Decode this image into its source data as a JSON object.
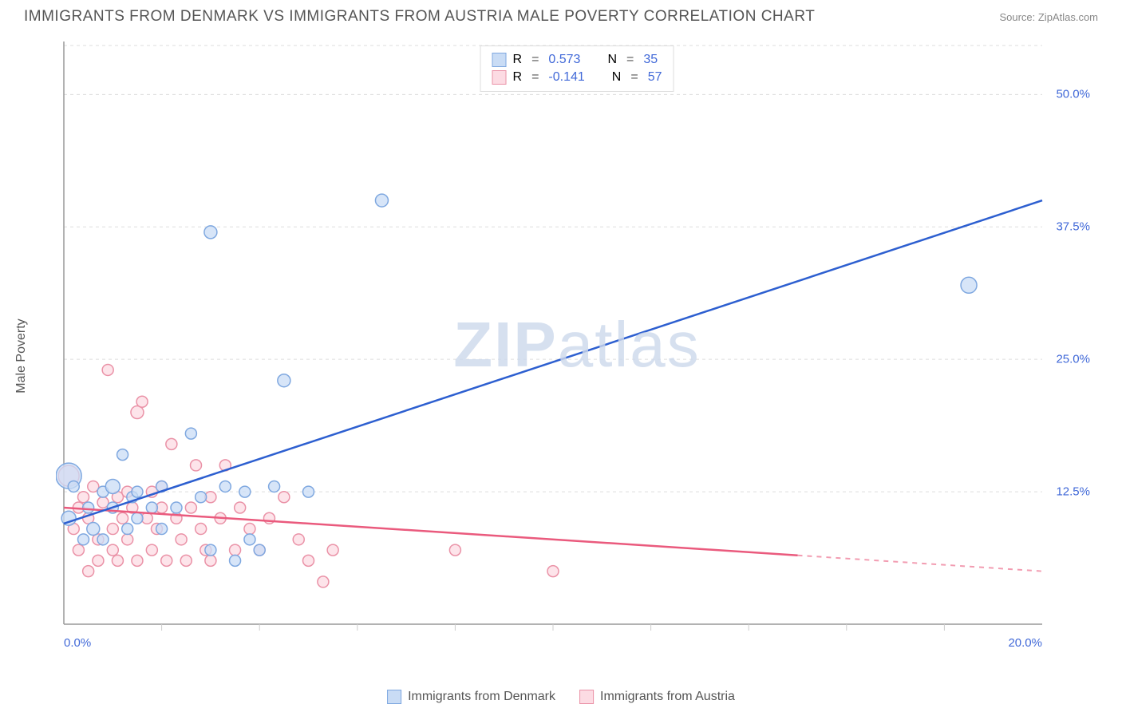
{
  "header": {
    "title": "IMMIGRANTS FROM DENMARK VS IMMIGRANTS FROM AUSTRIA MALE POVERTY CORRELATION CHART",
    "source": "Source: ZipAtlas.com"
  },
  "ylabel": "Male Poverty",
  "watermark": {
    "bold": "ZIP",
    "light": "atlas"
  },
  "chart": {
    "type": "scatter_with_regression",
    "background_color": "#ffffff",
    "grid_color": "#dddddd",
    "axis_color": "#999999",
    "tick_color": "#cccccc",
    "xlim": [
      0,
      20
    ],
    "ylim": [
      0,
      55
    ],
    "y_ticks": [
      {
        "v": 12.5,
        "label": "12.5%"
      },
      {
        "v": 25.0,
        "label": "25.0%"
      },
      {
        "v": 37.5,
        "label": "37.5%"
      },
      {
        "v": 50.0,
        "label": "50.0%"
      }
    ],
    "x_ticks_minor": [
      2,
      4,
      6,
      8,
      10,
      12,
      14,
      16,
      18
    ],
    "x_labels": [
      {
        "v": 0,
        "label": "0.0%",
        "anchor": "left"
      },
      {
        "v": 20,
        "label": "20.0%",
        "anchor": "right"
      }
    ],
    "series_a": {
      "name": "Immigrants from Denmark",
      "marker_fill": "#c9dcf5",
      "marker_stroke": "#7fa8e0",
      "line_color": "#2d5fd0",
      "R": "0.573",
      "N": "35",
      "reg": {
        "x1": 0,
        "y1": 9.5,
        "x2": 20,
        "y2": 40.0,
        "solid_until_x": 20
      },
      "points": [
        {
          "x": 0.1,
          "y": 14,
          "r": 16
        },
        {
          "x": 0.1,
          "y": 10,
          "r": 9
        },
        {
          "x": 0.2,
          "y": 13,
          "r": 7
        },
        {
          "x": 0.4,
          "y": 8,
          "r": 7
        },
        {
          "x": 0.5,
          "y": 11,
          "r": 7
        },
        {
          "x": 0.6,
          "y": 9,
          "r": 8
        },
        {
          "x": 0.8,
          "y": 12.5,
          "r": 7
        },
        {
          "x": 0.8,
          "y": 8,
          "r": 7
        },
        {
          "x": 1.0,
          "y": 11,
          "r": 7
        },
        {
          "x": 1.0,
          "y": 13,
          "r": 9
        },
        {
          "x": 1.2,
          "y": 16,
          "r": 7
        },
        {
          "x": 1.3,
          "y": 9,
          "r": 7
        },
        {
          "x": 1.4,
          "y": 12,
          "r": 7
        },
        {
          "x": 1.5,
          "y": 10,
          "r": 7
        },
        {
          "x": 1.5,
          "y": 12.5,
          "r": 7
        },
        {
          "x": 1.8,
          "y": 11,
          "r": 7
        },
        {
          "x": 2.0,
          "y": 9,
          "r": 7
        },
        {
          "x": 2.0,
          "y": 13,
          "r": 7
        },
        {
          "x": 2.3,
          "y": 11,
          "r": 7
        },
        {
          "x": 2.6,
          "y": 18,
          "r": 7
        },
        {
          "x": 2.8,
          "y": 12,
          "r": 7
        },
        {
          "x": 3.0,
          "y": 37,
          "r": 8
        },
        {
          "x": 3.0,
          "y": 7,
          "r": 7
        },
        {
          "x": 3.3,
          "y": 13,
          "r": 7
        },
        {
          "x": 3.5,
          "y": 6,
          "r": 7
        },
        {
          "x": 3.7,
          "y": 12.5,
          "r": 7
        },
        {
          "x": 3.8,
          "y": 8,
          "r": 7
        },
        {
          "x": 4.0,
          "y": 7,
          "r": 7
        },
        {
          "x": 4.3,
          "y": 13,
          "r": 7
        },
        {
          "x": 4.5,
          "y": 23,
          "r": 8
        },
        {
          "x": 5.0,
          "y": 12.5,
          "r": 7
        },
        {
          "x": 6.5,
          "y": 40,
          "r": 8
        },
        {
          "x": 18.5,
          "y": 32,
          "r": 10
        }
      ]
    },
    "series_b": {
      "name": "Immigrants from Austria",
      "marker_fill": "#fcdbe3",
      "marker_stroke": "#ea92a7",
      "line_color": "#ea5a7d",
      "R": "-0.141",
      "N": "57",
      "reg": {
        "x1": 0,
        "y1": 11.0,
        "x2": 20,
        "y2": 5.0,
        "solid_until_x": 15
      },
      "points": [
        {
          "x": 0.1,
          "y": 14,
          "r": 13
        },
        {
          "x": 0.2,
          "y": 9,
          "r": 7
        },
        {
          "x": 0.3,
          "y": 11,
          "r": 7
        },
        {
          "x": 0.3,
          "y": 7,
          "r": 7
        },
        {
          "x": 0.4,
          "y": 12,
          "r": 7
        },
        {
          "x": 0.5,
          "y": 5,
          "r": 7
        },
        {
          "x": 0.5,
          "y": 10,
          "r": 7
        },
        {
          "x": 0.6,
          "y": 13,
          "r": 7
        },
        {
          "x": 0.7,
          "y": 8,
          "r": 7
        },
        {
          "x": 0.7,
          "y": 6,
          "r": 7
        },
        {
          "x": 0.8,
          "y": 11.5,
          "r": 7
        },
        {
          "x": 0.9,
          "y": 24,
          "r": 7
        },
        {
          "x": 1.0,
          "y": 9,
          "r": 7
        },
        {
          "x": 1.0,
          "y": 7,
          "r": 7
        },
        {
          "x": 1.1,
          "y": 12,
          "r": 7
        },
        {
          "x": 1.1,
          "y": 6,
          "r": 7
        },
        {
          "x": 1.2,
          "y": 10,
          "r": 7
        },
        {
          "x": 1.3,
          "y": 12.5,
          "r": 7
        },
        {
          "x": 1.3,
          "y": 8,
          "r": 7
        },
        {
          "x": 1.4,
          "y": 11,
          "r": 7
        },
        {
          "x": 1.5,
          "y": 20,
          "r": 8
        },
        {
          "x": 1.5,
          "y": 6,
          "r": 7
        },
        {
          "x": 1.6,
          "y": 21,
          "r": 7
        },
        {
          "x": 1.7,
          "y": 10,
          "r": 7
        },
        {
          "x": 1.8,
          "y": 12.5,
          "r": 7
        },
        {
          "x": 1.8,
          "y": 7,
          "r": 7
        },
        {
          "x": 1.9,
          "y": 9,
          "r": 7
        },
        {
          "x": 2.0,
          "y": 11,
          "r": 7
        },
        {
          "x": 2.0,
          "y": 13,
          "r": 7
        },
        {
          "x": 2.1,
          "y": 6,
          "r": 7
        },
        {
          "x": 2.2,
          "y": 17,
          "r": 7
        },
        {
          "x": 2.3,
          "y": 10,
          "r": 7
        },
        {
          "x": 2.4,
          "y": 8,
          "r": 7
        },
        {
          "x": 2.5,
          "y": 6,
          "r": 7
        },
        {
          "x": 2.6,
          "y": 11,
          "r": 7
        },
        {
          "x": 2.7,
          "y": 15,
          "r": 7
        },
        {
          "x": 2.8,
          "y": 9,
          "r": 7
        },
        {
          "x": 2.9,
          "y": 7,
          "r": 7
        },
        {
          "x": 3.0,
          "y": 12,
          "r": 7
        },
        {
          "x": 3.0,
          "y": 6,
          "r": 7
        },
        {
          "x": 3.2,
          "y": 10,
          "r": 7
        },
        {
          "x": 3.3,
          "y": 15,
          "r": 7
        },
        {
          "x": 3.5,
          "y": 7,
          "r": 7
        },
        {
          "x": 3.6,
          "y": 11,
          "r": 7
        },
        {
          "x": 3.8,
          "y": 9,
          "r": 7
        },
        {
          "x": 4.0,
          "y": 7,
          "r": 7
        },
        {
          "x": 4.2,
          "y": 10,
          "r": 7
        },
        {
          "x": 4.5,
          "y": 12,
          "r": 7
        },
        {
          "x": 4.8,
          "y": 8,
          "r": 7
        },
        {
          "x": 5.0,
          "y": 6,
          "r": 7
        },
        {
          "x": 5.3,
          "y": 4,
          "r": 7
        },
        {
          "x": 5.5,
          "y": 7,
          "r": 7
        },
        {
          "x": 8.0,
          "y": 7,
          "r": 7
        },
        {
          "x": 10.0,
          "y": 5,
          "r": 7
        }
      ]
    }
  },
  "legend_top": {
    "r_label": "R",
    "n_label": "N",
    "eq": "="
  },
  "legend_bottom": {
    "a": "Immigrants from Denmark",
    "b": "Immigrants from Austria"
  }
}
